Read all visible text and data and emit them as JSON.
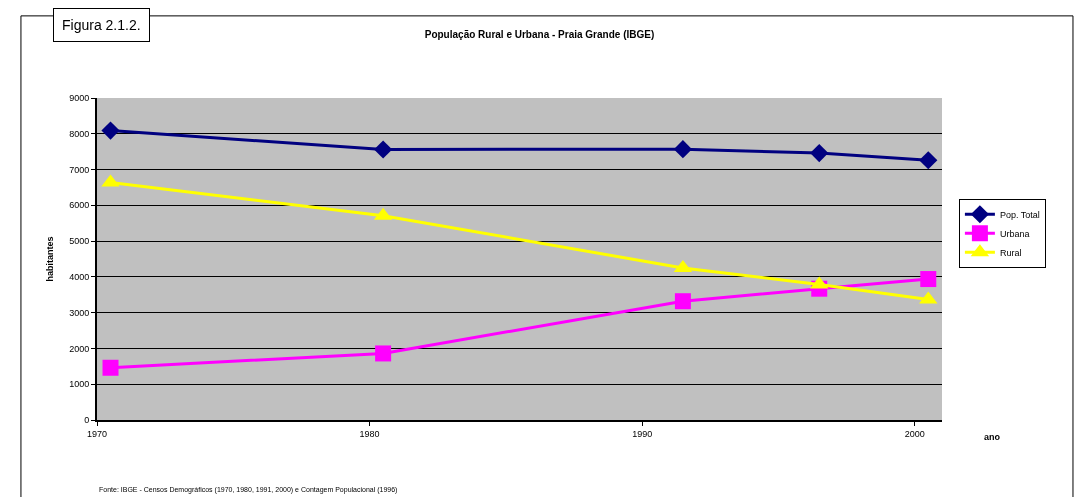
{
  "chart_data": {
    "type": "line",
    "title": "População Rural e Urbana - Praia Grande (IBGE)",
    "xlabel": "ano",
    "ylabel": "habitantes",
    "x": [
      "1970-07-01",
      "1980-07-01",
      "1991-07-01",
      "1996-07-01",
      "2000-07-01"
    ],
    "series": [
      {
        "name": "Pop. Total",
        "color": "#000080",
        "marker": "diamond",
        "values": [
          8090,
          7560,
          7570,
          7460,
          7260
        ]
      },
      {
        "name": "Urbana",
        "color": "#ff00ff",
        "marker": "square",
        "values": [
          1460,
          1860,
          3320,
          3670,
          3940
        ]
      },
      {
        "name": "Rural",
        "color": "#ffff00",
        "marker": "triangle",
        "values": [
          6640,
          5710,
          4250,
          3790,
          3370
        ]
      }
    ],
    "xlim": [
      "1970-01-01",
      "2001-01-01"
    ],
    "xticks": [
      {
        "value": "1970-01-01",
        "label": "1970"
      },
      {
        "value": "1980-01-01",
        "label": "1980"
      },
      {
        "value": "1990-01-01",
        "label": "1990"
      },
      {
        "value": "2000-01-01",
        "label": "2000"
      }
    ],
    "ylim": [
      0,
      9000
    ],
    "yticks": [
      0,
      1000,
      2000,
      3000,
      4000,
      5000,
      6000,
      7000,
      8000,
      9000
    ],
    "grid": "y",
    "legend": "right",
    "line_style": "solid",
    "annotations": [
      "Figura 2.1.2.",
      "Fonte: IBGE - Censos Demográficos (1970, 1980, 1991, 2000) e Contagem Populacional (1996)"
    ]
  }
}
